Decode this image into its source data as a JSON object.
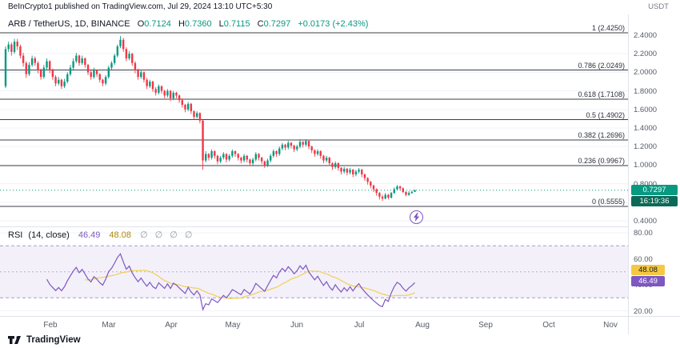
{
  "header": {
    "published": "BeInCrypto1 published on TradingView.com, Jul 29, 2024 13:10 UTC+5:30",
    "quote_currency": "USDT"
  },
  "legend": {
    "symbol": "ARB / TetherUS, 1D, BINANCE",
    "open_label": "O",
    "open": "0.7124",
    "high_label": "H",
    "high": "0.7360",
    "low_label": "L",
    "low": "0.7115",
    "close_label": "C",
    "close": "0.7297",
    "change": "+0.0173 (+2.43%)"
  },
  "last_price": {
    "value": "0.7297",
    "price": 0.7297,
    "countdown": "16:19:36"
  },
  "rsi": {
    "title": "RSI",
    "params": "(14, close)",
    "value": "46.49",
    "ma_value": "48.08",
    "empties": "∅ ∅ ∅ ∅",
    "ticks": [
      "80.00",
      "60.00",
      "40.00",
      "20.00"
    ]
  },
  "footer": {
    "brand": "TradingView"
  },
  "colors": {
    "up": "#089981",
    "down": "#f23645",
    "rsi_line": "#7e57c2",
    "rsi_ma_line": "#f2cf54",
    "fib_line": "#3c3f45",
    "band_fill": "#7e57c2",
    "grid": "#f0f3fa",
    "accent": "#089981"
  },
  "chart_data": {
    "type": "candlestick",
    "title": "ARB / TetherUS, 1D, BINANCE",
    "ylim": [
      0.4,
      2.4
    ],
    "price_ticks": [
      "2.4000",
      "2.2000",
      "2.0000",
      "1.8000",
      "1.6000",
      "1.4000",
      "1.2000",
      "1.0000",
      "0.8000",
      "0.6000",
      "0.4000"
    ],
    "x_months": [
      "Feb",
      "Mar",
      "Apr",
      "May",
      "Jun",
      "Jul",
      "Aug",
      "Sep",
      "Oct",
      "Nov"
    ],
    "fib": [
      {
        "ratio": "1",
        "price": 2.425,
        "text": "1 (2.4250)"
      },
      {
        "ratio": "0.786",
        "price": 2.0249,
        "text": "0.786 (2.0249)"
      },
      {
        "ratio": "0.618",
        "price": 1.7108,
        "text": "0.618 (1.7108)"
      },
      {
        "ratio": "0.5",
        "price": 1.4902,
        "text": "0.5 (1.4902)"
      },
      {
        "ratio": "0.382",
        "price": 1.2696,
        "text": "0.382 (1.2696)"
      },
      {
        "ratio": "0.236",
        "price": 0.9967,
        "text": "0.236 (0.9967)"
      },
      {
        "ratio": "0",
        "price": 0.5555,
        "text": "0 (0.5555)"
      }
    ],
    "ohlc_legend": {
      "open": 0.7124,
      "high": 0.736,
      "low": 0.7115,
      "close": 0.7297,
      "change": "+0.0173 (+2.43%)"
    },
    "indicators": {
      "rsi": {
        "period": 14,
        "source": "close",
        "last": 46.49,
        "ma_last": 48.08,
        "band": [
          30,
          70
        ],
        "ticks": [
          80,
          60,
          40,
          20
        ]
      }
    },
    "ohlc": [
      [
        1.85,
        2.28,
        1.83,
        2.25
      ],
      [
        2.25,
        2.33,
        2.22,
        2.3
      ],
      [
        2.3,
        2.32,
        2.18,
        2.22
      ],
      [
        2.22,
        2.36,
        2.2,
        2.33
      ],
      [
        2.33,
        2.36,
        2.24,
        2.28
      ],
      [
        2.28,
        2.3,
        2.15,
        2.18
      ],
      [
        2.18,
        2.21,
        2.06,
        2.1
      ],
      [
        2.1,
        2.12,
        1.94,
        1.98
      ],
      [
        1.98,
        2.11,
        1.96,
        2.08
      ],
      [
        2.08,
        2.18,
        2.06,
        2.15
      ],
      [
        2.15,
        2.17,
        2.07,
        2.1
      ],
      [
        2.1,
        2.12,
        1.99,
        2.02
      ],
      [
        2.02,
        2.04,
        1.92,
        1.95
      ],
      [
        1.95,
        2.08,
        1.93,
        2.05
      ],
      [
        2.05,
        2.15,
        2.03,
        2.12
      ],
      [
        2.12,
        2.13,
        1.99,
        2.02
      ],
      [
        2.02,
        2.04,
        1.92,
        1.95
      ],
      [
        1.95,
        1.97,
        1.85,
        1.88
      ],
      [
        1.88,
        1.95,
        1.86,
        1.92
      ],
      [
        1.92,
        1.93,
        1.82,
        1.85
      ],
      [
        1.85,
        1.93,
        1.83,
        1.9
      ],
      [
        1.9,
        2.0,
        1.88,
        1.98
      ],
      [
        1.98,
        2.08,
        1.96,
        2.05
      ],
      [
        2.05,
        2.15,
        2.03,
        2.12
      ],
      [
        2.12,
        2.21,
        2.1,
        2.18
      ],
      [
        2.18,
        2.19,
        2.07,
        2.1
      ],
      [
        2.1,
        2.18,
        2.08,
        2.15
      ],
      [
        2.15,
        2.16,
        2.05,
        2.08
      ],
      [
        2.08,
        2.09,
        1.97,
        2.0
      ],
      [
        2.0,
        2.02,
        1.92,
        1.95
      ],
      [
        1.95,
        2.05,
        1.93,
        2.02
      ],
      [
        2.02,
        2.03,
        1.95,
        1.98
      ],
      [
        1.98,
        1.99,
        1.89,
        1.92
      ],
      [
        1.92,
        1.93,
        1.85,
        1.88
      ],
      [
        1.88,
        1.97,
        1.86,
        1.95
      ],
      [
        1.95,
        2.07,
        1.93,
        2.05
      ],
      [
        2.05,
        2.12,
        2.03,
        2.1
      ],
      [
        2.1,
        2.2,
        2.08,
        2.18
      ],
      [
        2.18,
        2.3,
        2.16,
        2.28
      ],
      [
        2.28,
        2.39,
        2.26,
        2.35
      ],
      [
        2.35,
        2.37,
        2.22,
        2.25
      ],
      [
        2.25,
        2.27,
        2.12,
        2.15
      ],
      [
        2.15,
        2.23,
        2.13,
        2.2
      ],
      [
        2.2,
        2.21,
        2.07,
        2.1
      ],
      [
        2.1,
        2.12,
        1.99,
        2.02
      ],
      [
        2.02,
        2.04,
        1.92,
        1.95
      ],
      [
        1.95,
        2.03,
        1.93,
        2.0
      ],
      [
        2.0,
        2.01,
        1.89,
        1.92
      ],
      [
        1.92,
        1.94,
        1.82,
        1.85
      ],
      [
        1.85,
        1.92,
        1.83,
        1.9
      ],
      [
        1.9,
        1.91,
        1.79,
        1.82
      ],
      [
        1.82,
        1.84,
        1.75,
        1.78
      ],
      [
        1.78,
        1.87,
        1.76,
        1.85
      ],
      [
        1.85,
        1.86,
        1.77,
        1.8
      ],
      [
        1.8,
        1.81,
        1.72,
        1.75
      ],
      [
        1.75,
        1.82,
        1.73,
        1.8
      ],
      [
        1.8,
        1.81,
        1.69,
        1.72
      ],
      [
        1.72,
        1.8,
        1.7,
        1.78
      ],
      [
        1.78,
        1.79,
        1.72,
        1.75
      ],
      [
        1.75,
        1.76,
        1.67,
        1.7
      ],
      [
        1.7,
        1.72,
        1.62,
        1.65
      ],
      [
        1.65,
        1.66,
        1.57,
        1.6
      ],
      [
        1.6,
        1.68,
        1.58,
        1.66
      ],
      [
        1.66,
        1.67,
        1.55,
        1.58
      ],
      [
        1.58,
        1.59,
        1.49,
        1.52
      ],
      [
        1.52,
        1.58,
        1.5,
        1.56
      ],
      [
        1.56,
        1.57,
        1.45,
        1.48
      ],
      [
        1.48,
        1.49,
        0.95,
        1.05
      ],
      [
        1.05,
        1.15,
        1.03,
        1.12
      ],
      [
        1.12,
        1.13,
        1.05,
        1.08
      ],
      [
        1.08,
        1.17,
        1.06,
        1.15
      ],
      [
        1.15,
        1.16,
        1.07,
        1.1
      ],
      [
        1.1,
        1.11,
        1.01,
        1.04
      ],
      [
        1.04,
        1.1,
        1.02,
        1.08
      ],
      [
        1.08,
        1.14,
        1.06,
        1.12
      ],
      [
        1.12,
        1.13,
        1.03,
        1.06
      ],
      [
        1.06,
        1.12,
        1.04,
        1.1
      ],
      [
        1.1,
        1.17,
        1.08,
        1.15
      ],
      [
        1.15,
        1.16,
        1.09,
        1.12
      ],
      [
        1.12,
        1.13,
        1.05,
        1.08
      ],
      [
        1.08,
        1.09,
        1.02,
        1.05
      ],
      [
        1.05,
        1.12,
        1.03,
        1.1
      ],
      [
        1.1,
        1.11,
        1.03,
        1.06
      ],
      [
        1.06,
        1.07,
        0.99,
        1.02
      ],
      [
        1.02,
        1.08,
        1.0,
        1.06
      ],
      [
        1.06,
        1.14,
        1.04,
        1.12
      ],
      [
        1.12,
        1.13,
        1.05,
        1.08
      ],
      [
        1.08,
        1.09,
        1.01,
        1.04
      ],
      [
        1.04,
        1.05,
        0.97,
        1.0
      ],
      [
        1.0,
        1.07,
        0.98,
        1.05
      ],
      [
        1.05,
        1.12,
        1.03,
        1.1
      ],
      [
        1.1,
        1.17,
        1.08,
        1.15
      ],
      [
        1.15,
        1.16,
        1.09,
        1.12
      ],
      [
        1.12,
        1.2,
        1.1,
        1.18
      ],
      [
        1.18,
        1.24,
        1.16,
        1.22
      ],
      [
        1.22,
        1.23,
        1.16,
        1.19
      ],
      [
        1.19,
        1.26,
        1.17,
        1.24
      ],
      [
        1.24,
        1.25,
        1.18,
        1.21
      ],
      [
        1.21,
        1.22,
        1.14,
        1.17
      ],
      [
        1.17,
        1.22,
        1.15,
        1.2
      ],
      [
        1.2,
        1.28,
        1.18,
        1.25
      ],
      [
        1.25,
        1.26,
        1.19,
        1.22
      ],
      [
        1.22,
        1.28,
        1.2,
        1.26
      ],
      [
        1.26,
        1.27,
        1.17,
        1.2
      ],
      [
        1.2,
        1.21,
        1.13,
        1.16
      ],
      [
        1.16,
        1.17,
        1.09,
        1.12
      ],
      [
        1.12,
        1.17,
        1.1,
        1.15
      ],
      [
        1.15,
        1.16,
        1.07,
        1.1
      ],
      [
        1.1,
        1.11,
        1.02,
        1.05
      ],
      [
        1.05,
        1.1,
        1.03,
        1.08
      ],
      [
        1.08,
        1.09,
        0.99,
        1.02
      ],
      [
        1.02,
        1.03,
        0.95,
        0.98
      ],
      [
        0.98,
        1.04,
        0.96,
        1.02
      ],
      [
        1.02,
        1.03,
        0.94,
        0.97
      ],
      [
        0.97,
        0.98,
        0.9,
        0.93
      ],
      [
        0.93,
        0.98,
        0.91,
        0.96
      ],
      [
        0.96,
        0.97,
        0.89,
        0.92
      ],
      [
        0.92,
        0.97,
        0.9,
        0.95
      ],
      [
        0.95,
        0.96,
        0.87,
        0.9
      ],
      [
        0.9,
        0.95,
        0.88,
        0.93
      ],
      [
        0.93,
        0.97,
        0.91,
        0.95
      ],
      [
        0.95,
        0.96,
        0.87,
        0.9
      ],
      [
        0.9,
        0.91,
        0.83,
        0.86
      ],
      [
        0.86,
        0.87,
        0.79,
        0.82
      ],
      [
        0.82,
        0.83,
        0.75,
        0.78
      ],
      [
        0.78,
        0.79,
        0.71,
        0.74
      ],
      [
        0.74,
        0.75,
        0.67,
        0.7
      ],
      [
        0.7,
        0.71,
        0.63,
        0.66
      ],
      [
        0.66,
        0.68,
        0.615,
        0.64
      ],
      [
        0.64,
        0.7,
        0.63,
        0.68
      ],
      [
        0.68,
        0.69,
        0.63,
        0.65
      ],
      [
        0.65,
        0.71,
        0.64,
        0.7
      ],
      [
        0.7,
        0.76,
        0.69,
        0.74
      ],
      [
        0.74,
        0.785,
        0.73,
        0.77
      ],
      [
        0.77,
        0.78,
        0.73,
        0.75
      ],
      [
        0.75,
        0.76,
        0.7,
        0.71
      ],
      [
        0.71,
        0.72,
        0.665,
        0.68
      ],
      [
        0.68,
        0.72,
        0.67,
        0.7
      ],
      [
        0.7,
        0.725,
        0.69,
        0.712
      ],
      [
        0.7124,
        0.736,
        0.7115,
        0.7297
      ]
    ]
  }
}
